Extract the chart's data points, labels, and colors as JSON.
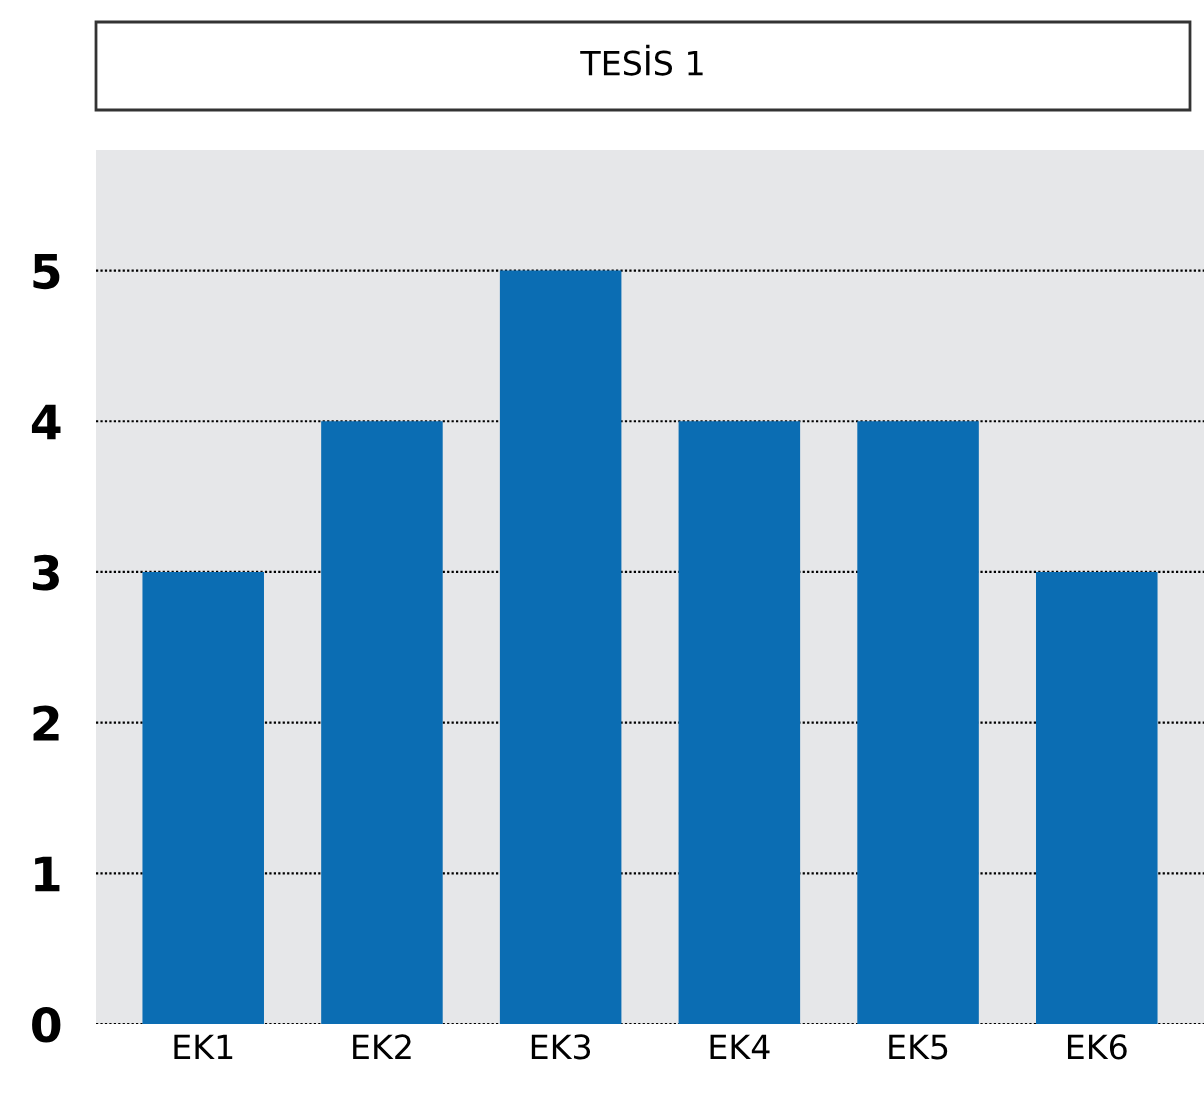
{
  "chart_data": {
    "type": "bar",
    "title": "TESİS 1",
    "categories": [
      "EK1",
      "EK2",
      "EK3",
      "EK4",
      "EK5",
      "EK6"
    ],
    "values": [
      3,
      4,
      5,
      4,
      4,
      3
    ],
    "color": "#0b6db3",
    "ylim": [
      0,
      5.8
    ],
    "yticks": [
      0,
      1,
      2,
      3,
      4,
      5
    ],
    "grid": "y"
  }
}
